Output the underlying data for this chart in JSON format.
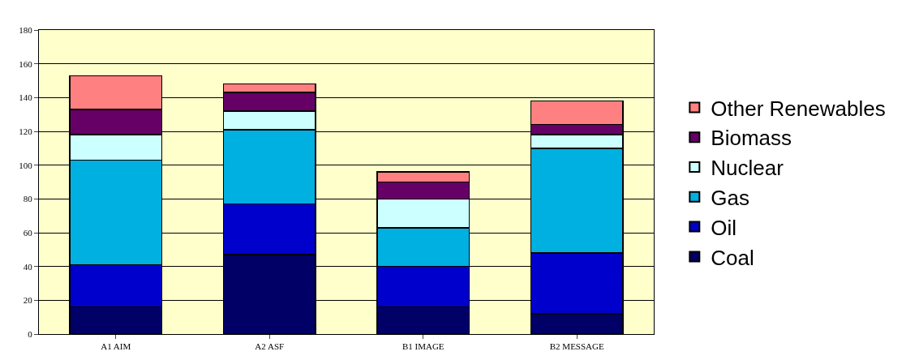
{
  "chart_data": {
    "type": "bar",
    "stacked": true,
    "categories": [
      "A1 AIM",
      "A2 ASF",
      "B1 IMAGE",
      "B2 MESSAGE"
    ],
    "series": [
      {
        "name": "Coal",
        "color": "#000066",
        "values": [
          16,
          47,
          16,
          12
        ]
      },
      {
        "name": "Oil",
        "color": "#0000cc",
        "values": [
          25,
          30,
          24,
          36
        ]
      },
      {
        "name": "Gas",
        "color": "#00b0e0",
        "values": [
          62,
          44,
          23,
          62
        ]
      },
      {
        "name": "Nuclear",
        "color": "#ccffff",
        "values": [
          15,
          11,
          17,
          8
        ]
      },
      {
        "name": "Biomass",
        "color": "#660066",
        "values": [
          15,
          11,
          10,
          6
        ]
      },
      {
        "name": "Other Renewables",
        "color": "#ff8080",
        "values": [
          20,
          5,
          6,
          14
        ]
      }
    ],
    "ylim": [
      0,
      180
    ],
    "yticks": [
      0,
      20,
      40,
      60,
      80,
      100,
      120,
      140,
      160,
      180
    ],
    "grid": "y",
    "legend": "right"
  }
}
